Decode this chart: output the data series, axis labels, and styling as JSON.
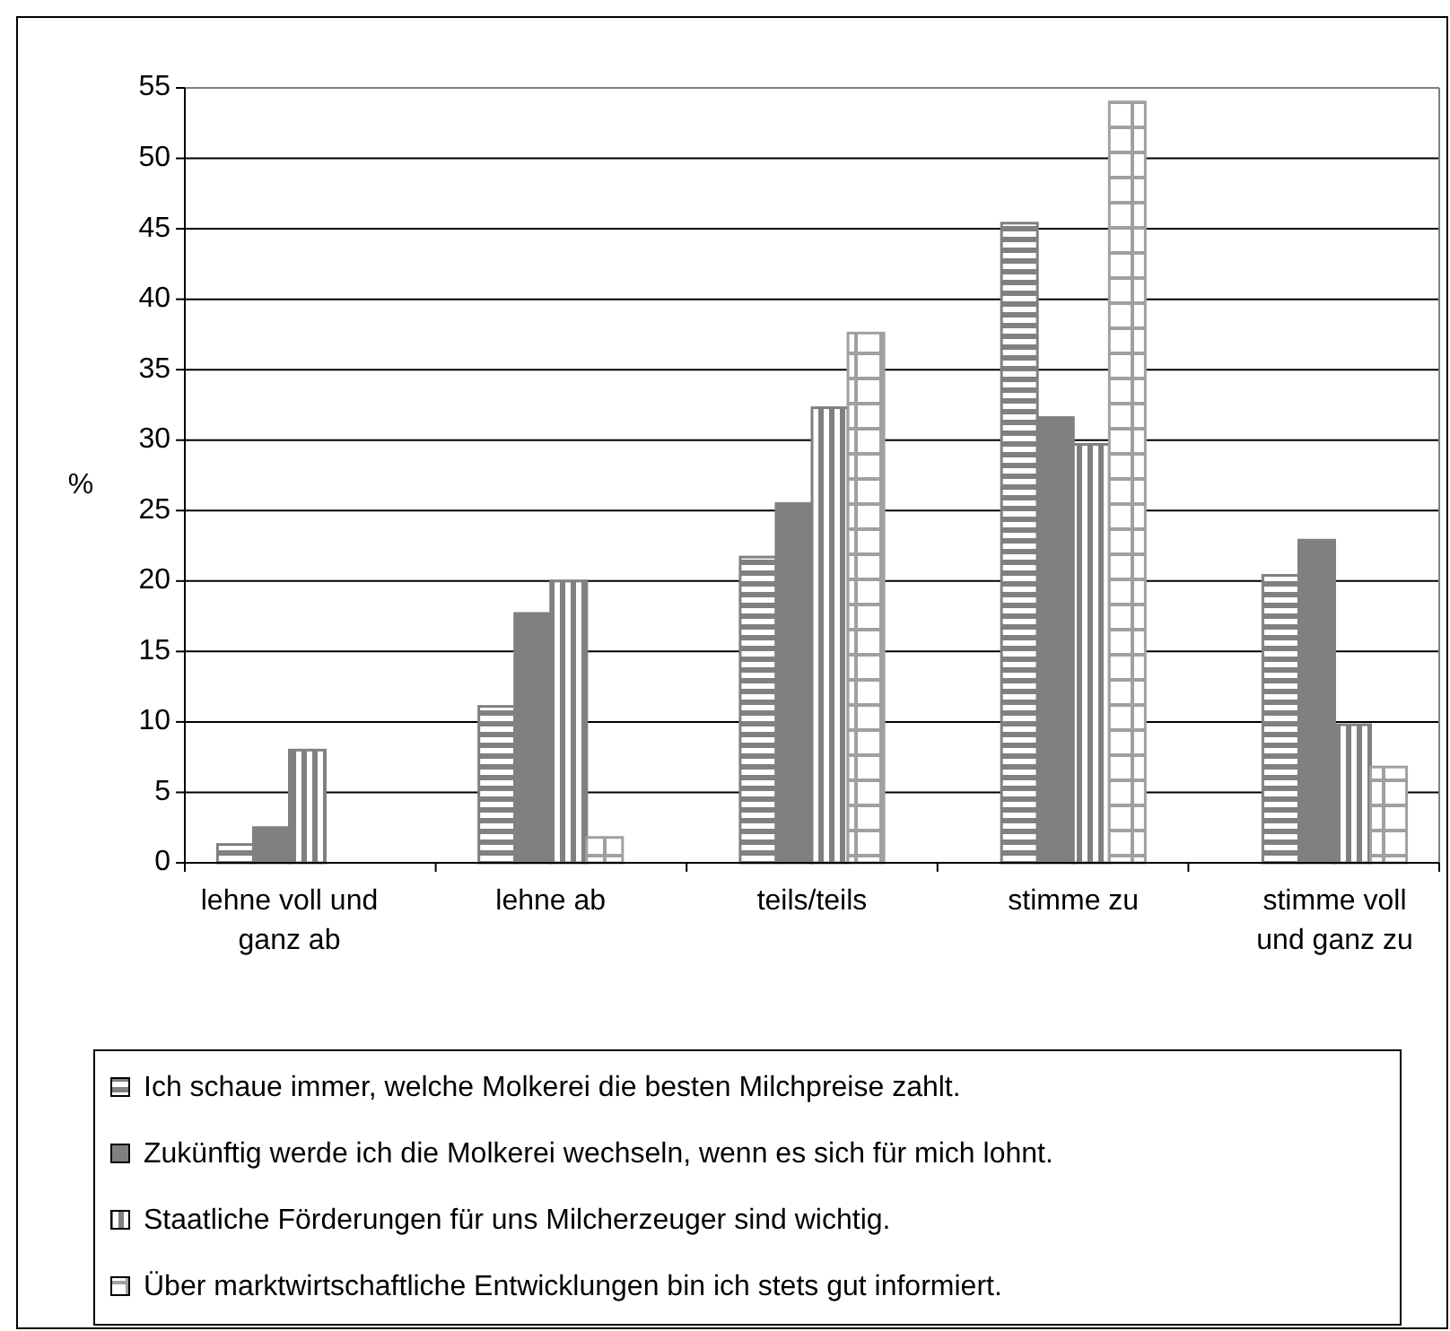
{
  "chart_data": {
    "type": "bar",
    "ylabel": "%",
    "categories": [
      "lehne voll und ganz ab",
      "lehne ab",
      "teils/teils",
      "stimme zu",
      "stimme voll und ganz zu"
    ],
    "series": [
      {
        "name": "Ich schaue immer, welche Molkerei die besten Milchpreise zahlt.",
        "color": "#808080",
        "values": [
          1.3,
          11.1,
          21.7,
          45.4,
          20.4
        ]
      },
      {
        "name": "Zukünftig werde ich die Molkerei wechseln, wenn es sich für mich lohnt.",
        "color": "#808080",
        "values": [
          2.5,
          17.7,
          25.5,
          31.6,
          22.9
        ]
      },
      {
        "name": "Staatliche Förderungen für uns Milcherzeuger sind wichtig.",
        "color": "#808080",
        "values": [
          8.0,
          20.0,
          32.3,
          29.7,
          9.8
        ]
      },
      {
        "name": "Über marktwirtschaftliche Entwicklungen bin ich stets gut informiert.",
        "color": "#a0a0a0",
        "values": [
          null,
          1.8,
          37.6,
          54.0,
          6.8
        ]
      }
    ],
    "ylim": [
      0,
      55
    ],
    "yticks": [
      0,
      5,
      10,
      15,
      20,
      25,
      30,
      35,
      40,
      45,
      50,
      55
    ],
    "grid": "y",
    "legend": "bottom"
  }
}
